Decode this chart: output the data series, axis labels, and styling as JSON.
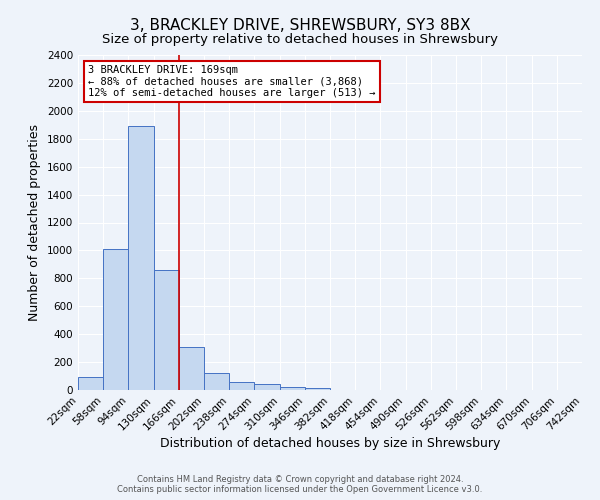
{
  "title": "3, BRACKLEY DRIVE, SHREWSBURY, SY3 8BX",
  "subtitle": "Size of property relative to detached houses in Shrewsbury",
  "xlabel": "Distribution of detached houses by size in Shrewsbury",
  "ylabel": "Number of detached properties",
  "footer_line1": "Contains HM Land Registry data © Crown copyright and database right 2024.",
  "footer_line2": "Contains public sector information licensed under the Open Government Licence v3.0.",
  "bins": [
    "22sqm",
    "58sqm",
    "94sqm",
    "130sqm",
    "166sqm",
    "202sqm",
    "238sqm",
    "274sqm",
    "310sqm",
    "346sqm",
    "382sqm",
    "418sqm",
    "454sqm",
    "490sqm",
    "526sqm",
    "562sqm",
    "598sqm",
    "634sqm",
    "670sqm",
    "706sqm",
    "742sqm"
  ],
  "values": [
    90,
    1010,
    1890,
    860,
    310,
    120,
    55,
    45,
    20,
    15,
    0,
    0,
    0,
    0,
    0,
    0,
    0,
    0,
    0,
    0
  ],
  "bar_color": "#c5d8f0",
  "bar_edge_color": "#4472c4",
  "vline_x": 4.0,
  "vline_color": "#cc0000",
  "annotation_title": "3 BRACKLEY DRIVE: 169sqm",
  "annotation_line1": "← 88% of detached houses are smaller (3,868)",
  "annotation_line2": "12% of semi-detached houses are larger (513) →",
  "annotation_box_color": "#ffffff",
  "annotation_box_edge_color": "#cc0000",
  "ylim": [
    0,
    2400
  ],
  "yticks": [
    0,
    200,
    400,
    600,
    800,
    1000,
    1200,
    1400,
    1600,
    1800,
    2000,
    2200,
    2400
  ],
  "background_color": "#eef3fa",
  "grid_color": "#ffffff",
  "title_fontsize": 11,
  "subtitle_fontsize": 9.5,
  "axis_label_fontsize": 9,
  "tick_fontsize": 7.5,
  "annotation_fontsize": 7.5,
  "footer_fontsize": 6
}
